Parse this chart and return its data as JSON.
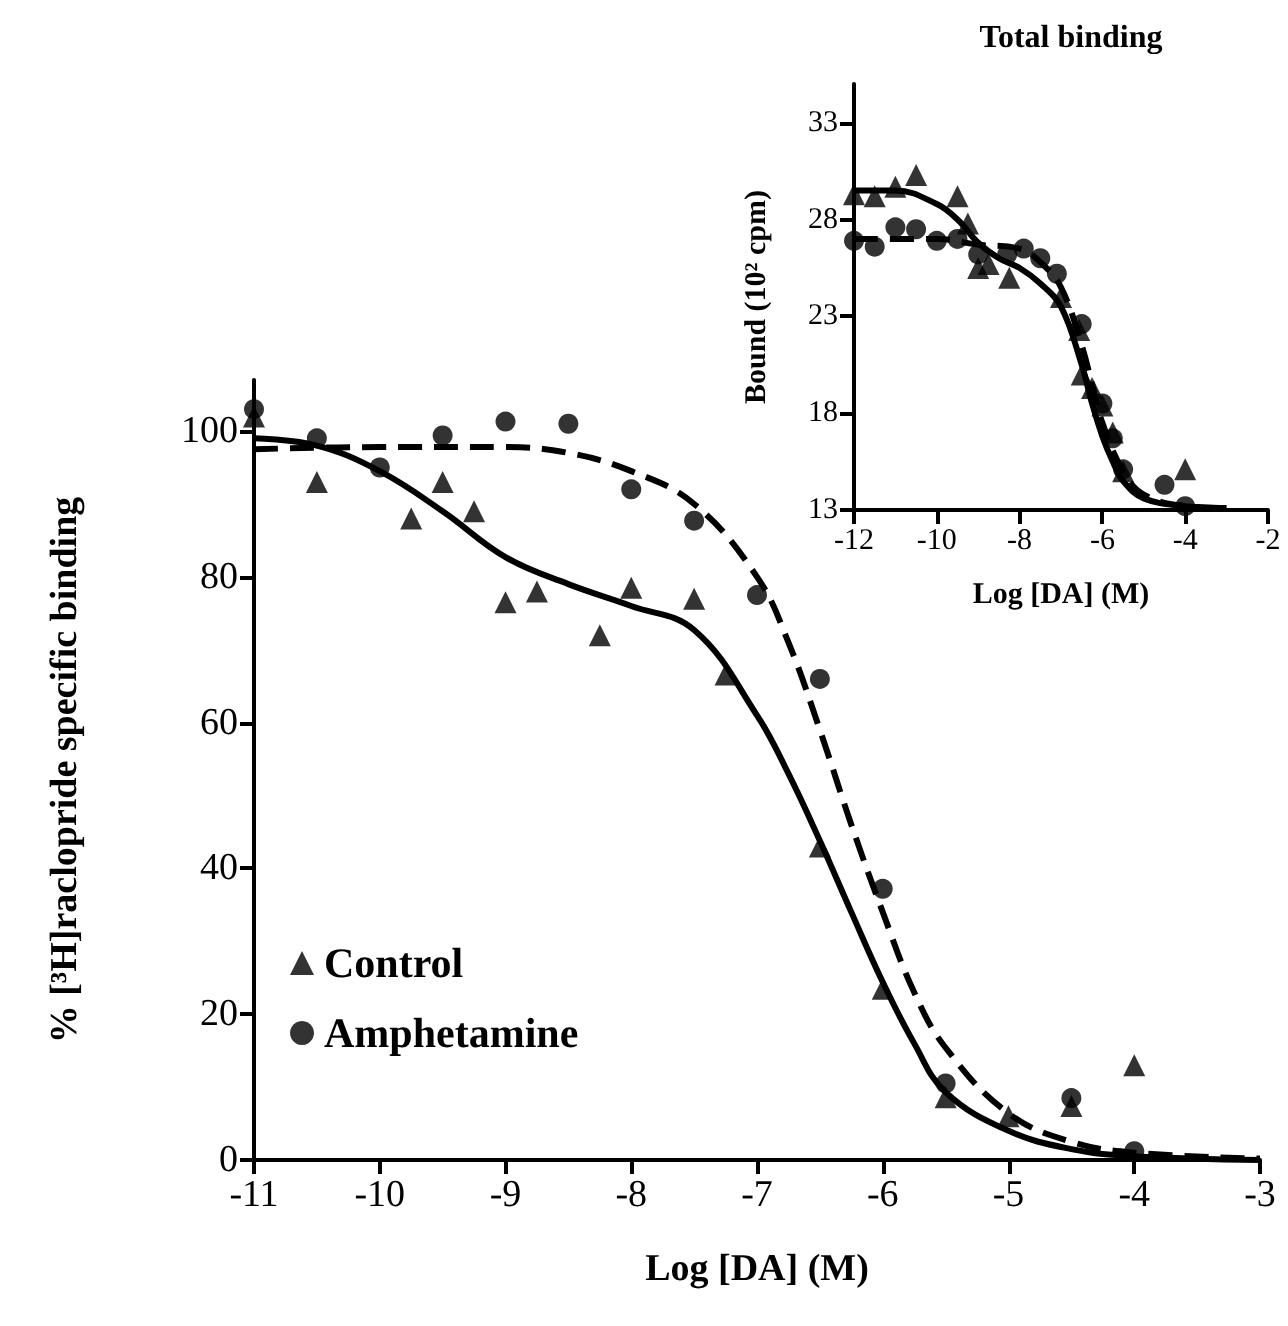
{
  "chart_data": [
    {
      "type": "scatter",
      "xlabel": "Log [DA] (M)",
      "ylabel": "% [³H]raclopride specific binding",
      "xlim": [
        -11,
        -3
      ],
      "xticks": [
        -11,
        -10,
        -9,
        -8,
        -7,
        -6,
        -5,
        -4,
        -3
      ],
      "ylim": [
        0,
        107
      ],
      "yticks": [
        0,
        20,
        40,
        60,
        80,
        100
      ],
      "grid": false,
      "legend": "bottom left",
      "series": [
        {
          "name": "Control",
          "marker": "triangle",
          "color": "#000000",
          "x": [
            -11,
            -10.5,
            -9.75,
            -9.5,
            -9.25,
            -9,
            -8.75,
            -8.25,
            -8,
            -7.5,
            -7.25,
            -6.5,
            -6,
            -5.5,
            -5,
            -4.5,
            -4
          ],
          "values": [
            102,
            93,
            88,
            93,
            89,
            76.5,
            78,
            72,
            78.5,
            77,
            66.6,
            43,
            23.5,
            8.6,
            6,
            7.4,
            13
          ]
        },
        {
          "name": "Amphetamine",
          "marker": "circle",
          "color": "#000000",
          "x": [
            -11,
            -10.5,
            -10,
            -9.5,
            -9,
            -8.5,
            -8,
            -7.5,
            -7,
            -6.5,
            -6,
            -5.5,
            -4.5,
            -4
          ],
          "values": [
            103,
            99,
            95,
            99.4,
            101.3,
            101,
            92,
            87.7,
            77.5,
            66,
            37.2,
            10.5,
            8.5,
            1.2
          ]
        },
        {
          "type": "line",
          "marker": "none",
          "line_style": "solid",
          "color": "#000000",
          "x": [
            -11,
            -10.5,
            -10,
            -9.5,
            -9,
            -8.5,
            -8,
            -7.5,
            -7,
            -6.75,
            -6.5,
            -6.25,
            -6,
            -5.75,
            -5.5,
            -5,
            -4.5,
            -4,
            -3
          ],
          "values": [
            99,
            98,
            94.5,
            89,
            82.7,
            79,
            76,
            72.7,
            61,
            53,
            43.8,
            34,
            24.4,
            16,
            9.3,
            4,
            1.5,
            0.5,
            0
          ]
        },
        {
          "type": "line",
          "marker": "none",
          "line_style": "dashed",
          "color": "#000000",
          "x": [
            -11,
            -10,
            -9,
            -8.5,
            -8,
            -7.5,
            -7,
            -6.75,
            -6.5,
            -6.25,
            -6,
            -5.75,
            -5.5,
            -5,
            -4.5,
            -4,
            -3
          ],
          "values": [
            97.5,
            97.8,
            97.8,
            97,
            94.5,
            90,
            80,
            71,
            59,
            46,
            34,
            23,
            15.4,
            6.4,
            2.5,
            1,
            0.2
          ]
        }
      ]
    },
    {
      "type": "scatter",
      "title": "Total binding",
      "xlabel": "Log [DA] (M)",
      "ylabel": "Bound (10² cpm)",
      "xlim": [
        -12,
        -2
      ],
      "xticks": [
        -12,
        -10,
        -8,
        -6,
        -4,
        -2
      ],
      "ylim": [
        13,
        35
      ],
      "yticks": [
        13,
        18,
        23,
        28,
        33
      ],
      "grid": false,
      "series": [
        {
          "marker": "triangle",
          "color": "#000000",
          "x": [
            -12,
            -11.5,
            -11,
            -10.5,
            -9.5,
            -9.25,
            -9,
            -8.75,
            -8.25,
            -7,
            -6.56,
            -6.5,
            -6.25,
            -6,
            -5.75,
            -5.5,
            -4
          ],
          "values": [
            29.3,
            29.2,
            29.7,
            30.3,
            29.2,
            27.8,
            25.5,
            25.7,
            25,
            24,
            22.3,
            20,
            19.3,
            18.4,
            17,
            15,
            15.1
          ]
        },
        {
          "marker": "circle",
          "color": "#000000",
          "x": [
            -12,
            -11.5,
            -11,
            -10.5,
            -10,
            -9.5,
            -9,
            -8.3,
            -7.9,
            -7.5,
            -7.1,
            -6.5,
            -6,
            -5.75,
            -5.5,
            -4.5,
            -4
          ],
          "values": [
            26.9,
            26.6,
            27.6,
            27.5,
            26.9,
            27,
            26.2,
            26.2,
            26.5,
            26,
            25.2,
            22.6,
            18.5,
            16.7,
            15.1,
            14.3,
            13.2
          ]
        },
        {
          "type": "line",
          "marker": "none",
          "line_style": "solid",
          "color": "#000000",
          "x": [
            -12,
            -11,
            -10,
            -9.5,
            -9,
            -8.5,
            -8,
            -7.5,
            -7,
            -6.5,
            -6.25,
            -6,
            -5.75,
            -5.5,
            -5,
            -4,
            -3
          ],
          "values": [
            29.5,
            29.5,
            28.8,
            28,
            26.8,
            26,
            25.5,
            24.7,
            23.5,
            20.5,
            18.5,
            16.8,
            15.5,
            14.5,
            13.6,
            13.2,
            13.1
          ]
        },
        {
          "type": "line",
          "marker": "none",
          "line_style": "dashed",
          "color": "#000000",
          "x": [
            -12,
            -10,
            -9,
            -8,
            -7.5,
            -7,
            -6.5,
            -6.25,
            -6,
            -5.5,
            -5,
            -4,
            -3
          ],
          "values": [
            27,
            27,
            26.7,
            26.5,
            25.8,
            24.5,
            21.5,
            19.5,
            17.5,
            15,
            13.8,
            13.2,
            13.1
          ]
        }
      ]
    }
  ]
}
